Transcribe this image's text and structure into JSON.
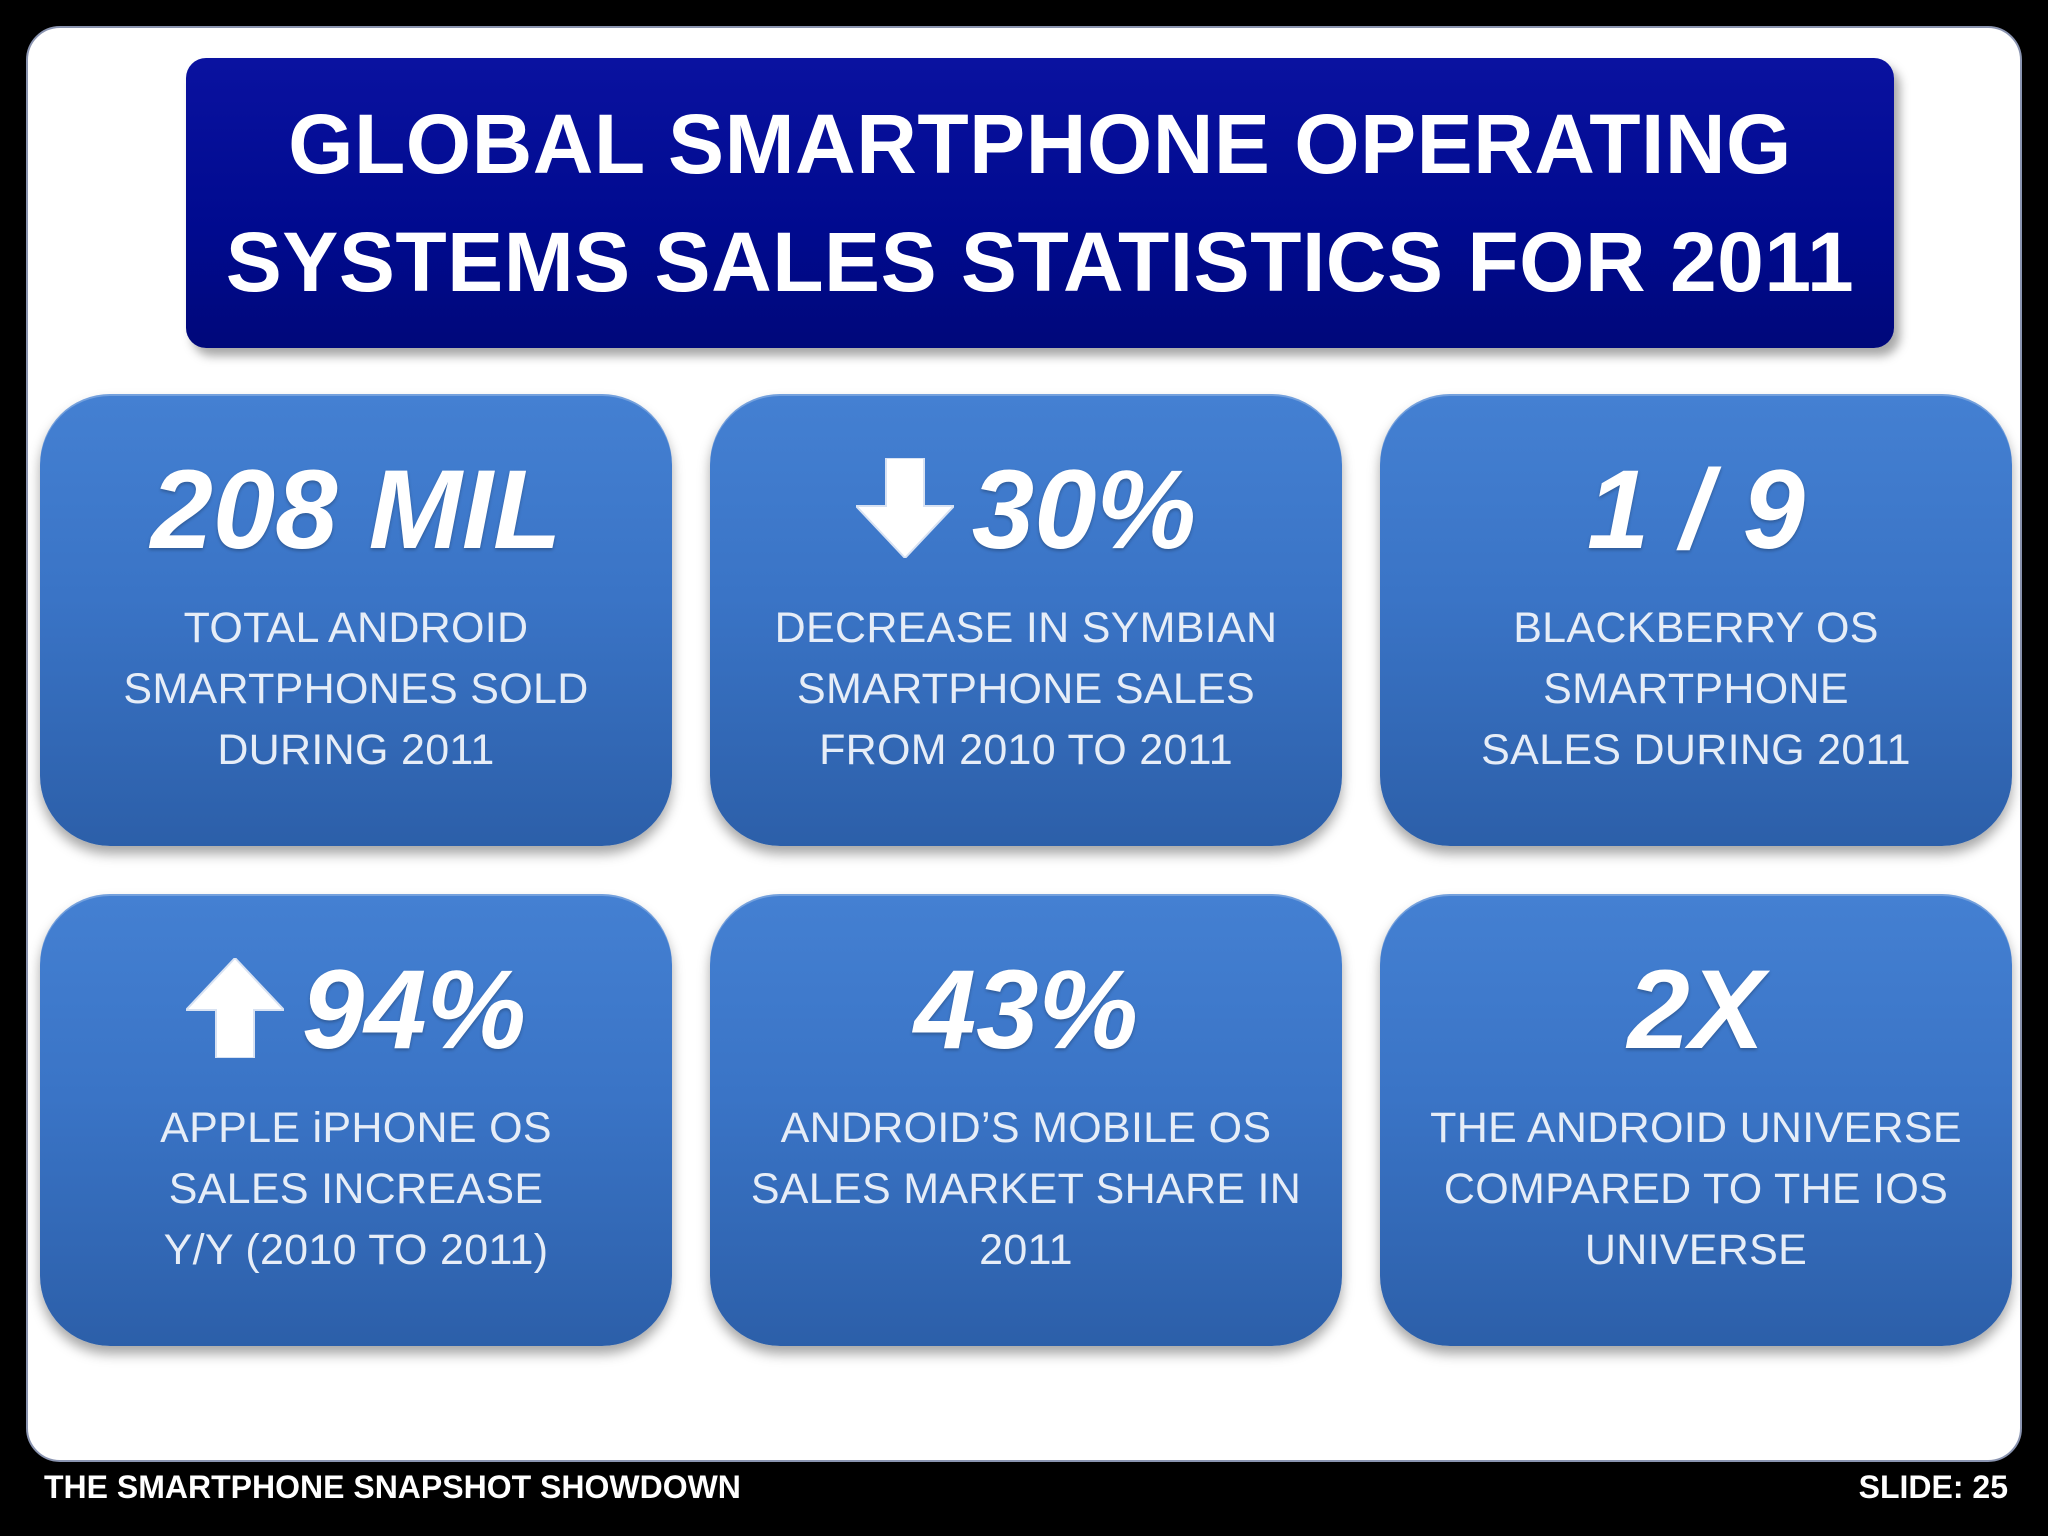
{
  "title": {
    "line1": "GLOBAL SMARTPHONE OPERATING",
    "line2": "SYSTEMS SALES STATISTICS FOR 2011"
  },
  "cards": [
    {
      "stat": "208 MIL",
      "arrow": "",
      "lines": [
        "TOTAL ANDROID",
        "SMARTPHONES SOLD",
        "DURING 2011"
      ]
    },
    {
      "stat": "30%",
      "arrow": "arrow-down-icon",
      "lines": [
        "DECREASE IN SYMBIAN",
        "SMARTPHONE SALES",
        "FROM 2010 TO 2011"
      ]
    },
    {
      "stat": "1 / 9",
      "arrow": "",
      "lines": [
        "BLACKBERRY OS",
        "SMARTPHONE",
        "SALES DURING 2011"
      ]
    },
    {
      "stat": "94%",
      "arrow": "arrow-up-icon",
      "lines": [
        "APPLE iPHONE OS",
        "SALES INCREASE",
        "Y/Y (2010 TO 2011)"
      ]
    },
    {
      "stat": "43%",
      "arrow": "",
      "lines": [
        "ANDROID’S MOBILE OS",
        "SALES MARKET SHARE IN",
        "2011"
      ]
    },
    {
      "stat": "2X",
      "arrow": "",
      "lines": [
        "THE ANDROID UNIVERSE",
        "COMPARED TO THE IOS",
        "UNIVERSE"
      ]
    }
  ],
  "footer": {
    "left": "THE SMARTPHONE SNAPSHOT SHOWDOWN",
    "right": "SLIDE: 25"
  },
  "colors": {
    "title_banner": "#000a8e",
    "card_top": "#4480d2",
    "card_bottom": "#2c5fa9",
    "background": "#000000",
    "canvas": "#ffffff"
  }
}
